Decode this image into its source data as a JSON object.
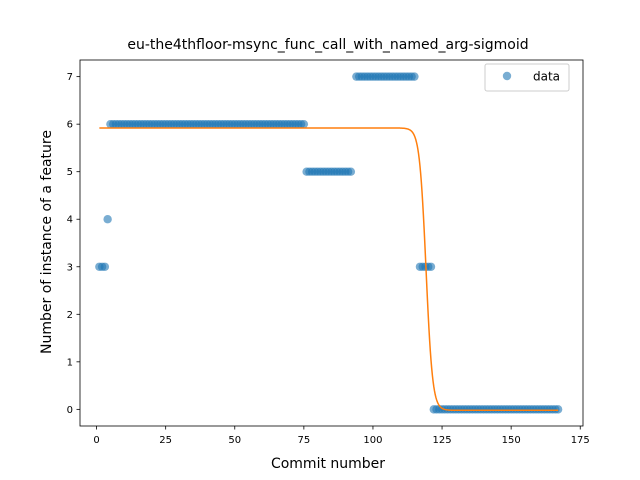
{
  "chart_data": {
    "type": "scatter",
    "title": "eu-the4thfloor-msync_func_call_with_named_arg-sigmoid",
    "xlabel": "Commit number",
    "ylabel": "Number of instance of a feature",
    "xlim": [
      -6,
      176
    ],
    "ylim": [
      -0.35,
      7.35
    ],
    "x_ticks": [
      0,
      25,
      50,
      75,
      100,
      125,
      150,
      175
    ],
    "y_ticks": [
      0,
      1,
      2,
      3,
      4,
      5,
      6,
      7
    ],
    "grid": false,
    "legend": {
      "placement": "top-right",
      "entries": [
        "data"
      ]
    },
    "colors": {
      "data": "#1f77b4",
      "fit": "#ff7f0e"
    },
    "series": [
      {
        "name": "data",
        "kind": "scatter",
        "points": [
          [
            1,
            3
          ],
          [
            2,
            3
          ],
          [
            3,
            3
          ],
          [
            4,
            4
          ],
          [
            5,
            6
          ],
          [
            6,
            6
          ],
          [
            7,
            6
          ],
          [
            8,
            6
          ],
          [
            9,
            6
          ],
          [
            10,
            6
          ],
          [
            11,
            6
          ],
          [
            12,
            6
          ],
          [
            13,
            6
          ],
          [
            14,
            6
          ],
          [
            15,
            6
          ],
          [
            16,
            6
          ],
          [
            17,
            6
          ],
          [
            18,
            6
          ],
          [
            19,
            6
          ],
          [
            20,
            6
          ],
          [
            21,
            6
          ],
          [
            22,
            6
          ],
          [
            23,
            6
          ],
          [
            24,
            6
          ],
          [
            25,
            6
          ],
          [
            26,
            6
          ],
          [
            27,
            6
          ],
          [
            28,
            6
          ],
          [
            29,
            6
          ],
          [
            30,
            6
          ],
          [
            31,
            6
          ],
          [
            32,
            6
          ],
          [
            33,
            6
          ],
          [
            34,
            6
          ],
          [
            35,
            6
          ],
          [
            36,
            6
          ],
          [
            37,
            6
          ],
          [
            38,
            6
          ],
          [
            39,
            6
          ],
          [
            40,
            6
          ],
          [
            41,
            6
          ],
          [
            42,
            6
          ],
          [
            43,
            6
          ],
          [
            44,
            6
          ],
          [
            45,
            6
          ],
          [
            46,
            6
          ],
          [
            47,
            6
          ],
          [
            48,
            6
          ],
          [
            49,
            6
          ],
          [
            50,
            6
          ],
          [
            51,
            6
          ],
          [
            52,
            6
          ],
          [
            53,
            6
          ],
          [
            54,
            6
          ],
          [
            55,
            6
          ],
          [
            56,
            6
          ],
          [
            57,
            6
          ],
          [
            58,
            6
          ],
          [
            59,
            6
          ],
          [
            60,
            6
          ],
          [
            61,
            6
          ],
          [
            62,
            6
          ],
          [
            63,
            6
          ],
          [
            64,
            6
          ],
          [
            65,
            6
          ],
          [
            66,
            6
          ],
          [
            67,
            6
          ],
          [
            68,
            6
          ],
          [
            69,
            6
          ],
          [
            70,
            6
          ],
          [
            71,
            6
          ],
          [
            72,
            6
          ],
          [
            73,
            6
          ],
          [
            74,
            6
          ],
          [
            75,
            6
          ],
          [
            76,
            5
          ],
          [
            77,
            5
          ],
          [
            78,
            5
          ],
          [
            79,
            5
          ],
          [
            80,
            5
          ],
          [
            81,
            5
          ],
          [
            82,
            5
          ],
          [
            83,
            5
          ],
          [
            84,
            5
          ],
          [
            85,
            5
          ],
          [
            86,
            5
          ],
          [
            87,
            5
          ],
          [
            88,
            5
          ],
          [
            89,
            5
          ],
          [
            90,
            5
          ],
          [
            91,
            5
          ],
          [
            92,
            5
          ],
          [
            94,
            7
          ],
          [
            95,
            7
          ],
          [
            96,
            7
          ],
          [
            97,
            7
          ],
          [
            98,
            7
          ],
          [
            99,
            7
          ],
          [
            100,
            7
          ],
          [
            101,
            7
          ],
          [
            102,
            7
          ],
          [
            103,
            7
          ],
          [
            104,
            7
          ],
          [
            105,
            7
          ],
          [
            106,
            7
          ],
          [
            107,
            7
          ],
          [
            108,
            7
          ],
          [
            109,
            7
          ],
          [
            110,
            7
          ],
          [
            111,
            7
          ],
          [
            112,
            7
          ],
          [
            113,
            7
          ],
          [
            114,
            7
          ],
          [
            115,
            7
          ],
          [
            117,
            3
          ],
          [
            118,
            3
          ],
          [
            119,
            3
          ],
          [
            120,
            3
          ],
          [
            121,
            3
          ],
          [
            122,
            0
          ],
          [
            123,
            0
          ],
          [
            124,
            0
          ],
          [
            125,
            0
          ],
          [
            126,
            0
          ],
          [
            127,
            0
          ],
          [
            128,
            0
          ],
          [
            129,
            0
          ],
          [
            130,
            0
          ],
          [
            131,
            0
          ],
          [
            132,
            0
          ],
          [
            133,
            0
          ],
          [
            134,
            0
          ],
          [
            135,
            0
          ],
          [
            136,
            0
          ],
          [
            137,
            0
          ],
          [
            138,
            0
          ],
          [
            139,
            0
          ],
          [
            140,
            0
          ],
          [
            141,
            0
          ],
          [
            142,
            0
          ],
          [
            143,
            0
          ],
          [
            144,
            0
          ],
          [
            145,
            0
          ],
          [
            146,
            0
          ],
          [
            147,
            0
          ],
          [
            148,
            0
          ],
          [
            149,
            0
          ],
          [
            150,
            0
          ],
          [
            151,
            0
          ],
          [
            152,
            0
          ],
          [
            153,
            0
          ],
          [
            154,
            0
          ],
          [
            155,
            0
          ],
          [
            156,
            0
          ],
          [
            157,
            0
          ],
          [
            158,
            0
          ],
          [
            159,
            0
          ],
          [
            160,
            0
          ],
          [
            161,
            0
          ],
          [
            162,
            0
          ],
          [
            163,
            0
          ],
          [
            164,
            0
          ],
          [
            165,
            0
          ],
          [
            166,
            0
          ],
          [
            167,
            0
          ]
        ]
      },
      {
        "kind": "line",
        "curve": "sigmoid",
        "x_range": [
          1,
          167
        ],
        "upper": 5.92,
        "lower": -0.02,
        "midpoint": 119.2,
        "steepness": 0.85
      }
    ]
  }
}
